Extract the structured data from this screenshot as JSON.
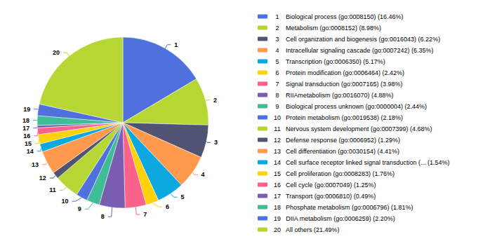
{
  "chart_data": {
    "type": "pie",
    "categories": [
      "Biological process (go:0008150) (16.46%)",
      "Metabolism (go:0008152) (8.98%)",
      "Cell organization and biogenesis (go:0016043) (6.22%)",
      "Intracellular signaling cascade (go:0007242) (6.35%)",
      "Transcription (go:0006350) (5.17%)",
      "Protein modification (go:0006464) (2.42%)",
      "Signal transduction (go:0007165) (3.98%)",
      "RIIAmetabolism (go:0016070) (4.88%)",
      "Biological process unknown (go:0000004) (2.44%)",
      "Protein metabolism (go:0019538) (2.18%)",
      "Nervous system development (go:0007399) (4.68%)",
      "Defense response (go:0006952) (1.29%)",
      "Cell differentiation (go:0030154) (4.41%)",
      "Cell surface receptor linked signal transduction (... (1.54%)",
      "Cell proliferation (go:0008283) (1.76%)",
      "Cell cycle (go:0007049) (1.25%)",
      "Transport (go:0006810) (0.49%)",
      "Phosphate metabolism (go:0006796) (1.81%)",
      "DIIA metabolism (go:0006259) (2.20%)",
      "All others (21.49%)"
    ],
    "values": [
      16.46,
      8.98,
      6.22,
      6.35,
      5.17,
      2.42,
      3.98,
      4.88,
      2.44,
      2.18,
      4.68,
      1.29,
      4.41,
      1.54,
      1.76,
      1.25,
      0.49,
      1.81,
      2.2,
      21.49
    ],
    "annotations": [
      "1",
      "2",
      "3",
      "4",
      "5",
      "6",
      "7",
      "8",
      "9",
      "10",
      "11",
      "12",
      "13",
      "14",
      "15",
      "16",
      "17",
      "18",
      "19",
      "20"
    ],
    "legend": "right"
  }
}
